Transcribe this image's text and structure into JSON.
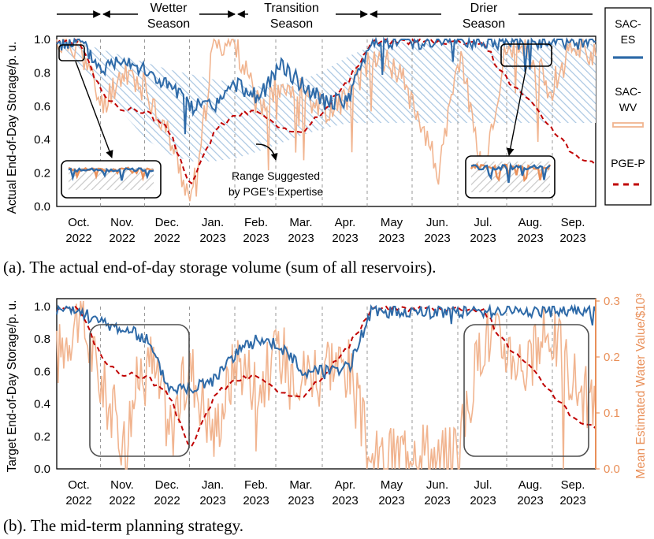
{
  "season_labels": {
    "wetter_1": "Wetter",
    "wetter_2": "Season",
    "transition_1": "Transition",
    "transition_2": "Season",
    "drier_1": "Drier",
    "drier_2": "Season"
  },
  "legend": {
    "sac_es": "SAC-\nES",
    "sac_wv": "SAC-\nWV",
    "pge_p": "PGE-P"
  },
  "annotation": {
    "line1": "Range Suggested",
    "line2": "by PGE’s Expertise"
  },
  "captions": {
    "a": "(a). The actual end-of-day storage volume (sum of all reservoirs).",
    "b": "(b). The mid-term planning strategy."
  },
  "colors": {
    "sac_es": "#2e6aa8",
    "sac_wv": "#f1b48f",
    "sac_wv_dark": "#e9905a",
    "pge_p": "#c00000",
    "band": "#a9c6e2"
  },
  "chart_data": [
    {
      "type": "line",
      "title": "",
      "ylabel": "Actual End-of-Day Storage/p. u.",
      "xlabel": "",
      "ylim": [
        0.0,
        1.0
      ],
      "yticks": [
        "0.0",
        "0.2",
        "0.4",
        "0.6",
        "0.8",
        "1.0"
      ],
      "month_labels": [
        [
          "Oct.",
          "2022"
        ],
        [
          "Nov.",
          "2022"
        ],
        [
          "Dec.",
          "2022"
        ],
        [
          "Jan.",
          "2023"
        ],
        [
          "Feb.",
          "2023"
        ],
        [
          "Mar.",
          "2023"
        ],
        [
          "Apr.",
          "2023"
        ],
        [
          "May",
          "2023"
        ],
        [
          "Jun.",
          "2023"
        ],
        [
          "Jul.",
          "2023"
        ],
        [
          "Aug.",
          "2023"
        ],
        [
          "Sep.",
          "2023"
        ]
      ],
      "x": [
        0,
        1,
        2,
        3,
        4,
        5,
        6,
        7,
        8,
        9,
        10,
        11,
        12,
        13,
        14,
        15,
        16,
        17,
        18,
        19,
        20,
        21,
        22,
        23,
        24
      ],
      "band_upper": [
        1.0,
        0.98,
        0.94,
        0.9,
        0.86,
        0.82,
        0.79,
        0.76,
        0.74,
        0.72,
        0.73,
        0.76,
        0.82,
        0.9,
        0.96,
        0.98,
        0.99,
        0.99,
        0.99,
        0.99,
        0.99,
        0.99,
        0.98,
        0.98,
        0.97
      ],
      "band_lower": [
        0.98,
        0.85,
        0.7,
        0.55,
        0.4,
        0.31,
        0.27,
        0.27,
        0.29,
        0.33,
        0.38,
        0.43,
        0.47,
        0.5,
        0.5,
        0.5,
        0.5,
        0.5,
        0.5,
        0.5,
        0.5,
        0.5,
        0.5,
        0.5,
        0.5
      ],
      "series": [
        {
          "name": "SAC-ES",
          "values": [
            0.98,
            0.99,
            0.82,
            0.9,
            0.8,
            0.72,
            0.6,
            0.6,
            0.73,
            0.65,
            0.85,
            0.72,
            0.62,
            0.64,
            0.99,
            0.99,
            0.99,
            0.99,
            0.99,
            0.99,
            0.99,
            0.98,
            0.99,
            0.99,
            0.99
          ]
        },
        {
          "name": "SAC-WV",
          "values": [
            0.98,
            0.97,
            0.6,
            0.82,
            0.7,
            0.42,
            0.02,
            0.98,
            0.97,
            0.58,
            0.75,
            0.68,
            0.58,
            0.66,
            0.9,
            0.85,
            0.6,
            0.2,
            0.92,
            0.15,
            0.95,
            0.92,
            0.7,
            0.98,
            0.9
          ]
        },
        {
          "name": "PGE-P",
          "values": [
            0.98,
            0.98,
            0.68,
            0.58,
            0.57,
            0.45,
            0.12,
            0.45,
            0.55,
            0.57,
            0.45,
            0.46,
            0.6,
            0.75,
            0.98,
            0.99,
            0.99,
            0.99,
            0.99,
            0.98,
            0.77,
            0.63,
            0.48,
            0.32,
            0.25
          ]
        }
      ]
    },
    {
      "type": "line",
      "title": "",
      "ylabel": "Target End-of-Day Storage/p. u.",
      "y2label": "Mean Estimated Water Value/$10³",
      "xlabel": "",
      "ylim": [
        0.0,
        1.0
      ],
      "y2lim": [
        0.0,
        0.3
      ],
      "yticks": [
        "0.0",
        "0.2",
        "0.4",
        "0.6",
        "0.8",
        "1.0"
      ],
      "y2ticks": [
        "0.0",
        "0.1",
        "0.2",
        "0.3"
      ],
      "month_labels": [
        [
          "Oct.",
          "2022"
        ],
        [
          "Nov.",
          "2022"
        ],
        [
          "Dec.",
          "2022"
        ],
        [
          "Jan.",
          "2023"
        ],
        [
          "Feb.",
          "2023"
        ],
        [
          "Mar.",
          "2023"
        ],
        [
          "Apr.",
          "2023"
        ],
        [
          "May",
          "2023"
        ],
        [
          "Jun.",
          "2023"
        ],
        [
          "Jul.",
          "2023"
        ],
        [
          "Aug.",
          "2023"
        ],
        [
          "Sep.",
          "2023"
        ]
      ],
      "x": [
        0,
        1,
        2,
        3,
        4,
        5,
        6,
        7,
        8,
        9,
        10,
        11,
        12,
        13,
        14,
        15,
        16,
        17,
        18,
        19,
        20,
        21,
        22,
        23,
        24
      ],
      "series": [
        {
          "name": "SAC-ES",
          "axis": "left",
          "values": [
            0.98,
            0.97,
            0.9,
            0.86,
            0.8,
            0.5,
            0.5,
            0.55,
            0.72,
            0.8,
            0.75,
            0.6,
            0.62,
            0.62,
            0.97,
            0.97,
            0.97,
            0.97,
            0.97,
            0.97,
            0.98,
            0.97,
            0.97,
            0.97,
            0.97
          ]
        },
        {
          "name": "PGE-P",
          "axis": "left",
          "values": [
            0.98,
            0.98,
            0.68,
            0.58,
            0.57,
            0.45,
            0.12,
            0.45,
            0.55,
            0.57,
            0.45,
            0.46,
            0.6,
            0.75,
            0.98,
            0.99,
            0.99,
            0.99,
            0.99,
            0.98,
            0.77,
            0.63,
            0.48,
            0.32,
            0.25
          ]
        },
        {
          "name": "SAC-WV",
          "axis": "right",
          "values": [
            0.2,
            0.28,
            0.15,
            0.05,
            0.22,
            0.08,
            0.18,
            0.06,
            0.2,
            0.15,
            0.21,
            0.17,
            0.2,
            0.18,
            0.01,
            0.02,
            0.06,
            0.01,
            0.05,
            0.24,
            0.22,
            0.18,
            0.25,
            0.16,
            0.1
          ]
        }
      ]
    }
  ]
}
